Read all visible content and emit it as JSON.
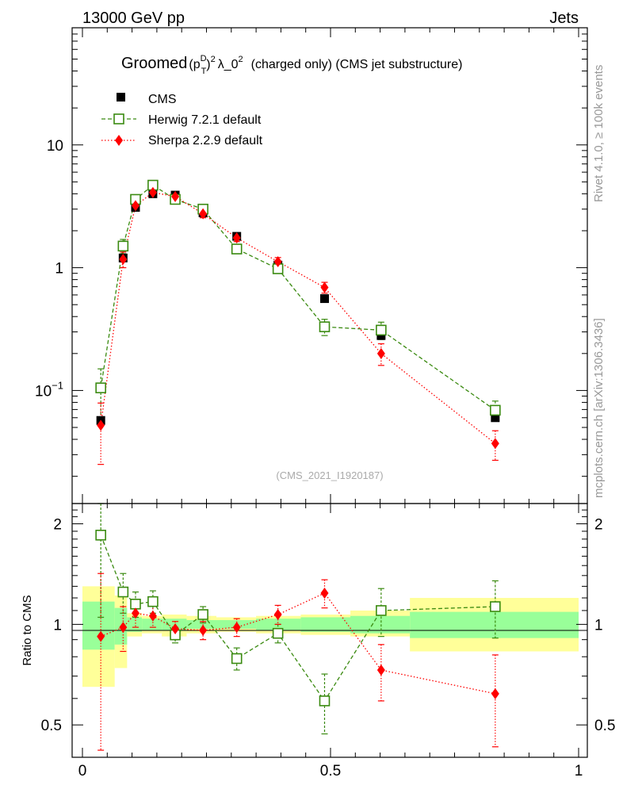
{
  "header": {
    "left_label": "13000 GeV pp",
    "right_label": "Jets"
  },
  "side_labels": {
    "rivet": "Rivet 4.1.0, ≥ 100k events",
    "mcplots": "mcplots.cern.ch [arXiv:1306.3436]"
  },
  "chart_data": {
    "type": "scatter",
    "title": {
      "prefix": "Groomed",
      "base": "(p",
      "sub": "T",
      "sup_d": "D",
      "sup2": "2",
      "rest": "λ_0",
      "rest_sup": "2",
      "suffix": "(charged only) (CMS jet substructure)"
    },
    "analysis_id": "(CMS_2021_I1920187)",
    "xlim": [
      0,
      1
    ],
    "ylim_main": [
      0.012,
      90
    ],
    "y_scale_main": "log",
    "ylim_ratio": [
      0.4,
      2.3
    ],
    "y_scale_ratio": "log",
    "ylabel_ratio": "Ratio to CMS",
    "x_ticks": [
      {
        "v": 0,
        "label": "0"
      },
      {
        "v": 0.5,
        "label": "0.5"
      },
      {
        "v": 1,
        "label": "1"
      }
    ],
    "y_ticks_main": [
      {
        "v": 0.1,
        "base": "10",
        "exp": "−1"
      },
      {
        "v": 1,
        "base": "1",
        "exp": ""
      },
      {
        "v": 10,
        "base": "10",
        "exp": ""
      }
    ],
    "y_ticks_ratio": [
      {
        "v": 0.5,
        "label": "0.5"
      },
      {
        "v": 1,
        "label": "1"
      },
      {
        "v": 2,
        "label": "2"
      }
    ],
    "legend": [
      {
        "name": "CMS",
        "marker": "square-filled",
        "color": "#000000"
      },
      {
        "name": "Herwig 7.2.1 default",
        "marker": "square-open",
        "color": "#3a8a10"
      },
      {
        "name": "Sherpa 2.2.9 default",
        "marker": "diamond",
        "color": "#ff0000"
      }
    ],
    "bins": [
      0,
      0.065,
      0.09,
      0.12,
      0.16,
      0.21,
      0.27,
      0.35,
      0.44,
      0.54,
      0.66,
      1.0
    ],
    "band_inner": [
      [
        0.84,
        1.17
      ],
      [
        0.87,
        1.12
      ],
      [
        0.95,
        1.05
      ],
      [
        0.96,
        1.04
      ],
      [
        0.96,
        1.04
      ],
      [
        0.97,
        1.03
      ],
      [
        0.97,
        1.03
      ],
      [
        0.96,
        1.04
      ],
      [
        0.95,
        1.05
      ],
      [
        0.94,
        1.06
      ],
      [
        0.91,
        1.09
      ]
    ],
    "band_outer": [
      [
        0.65,
        1.3
      ],
      [
        0.74,
        1.22
      ],
      [
        0.92,
        1.08
      ],
      [
        0.94,
        1.06
      ],
      [
        0.92,
        1.07
      ],
      [
        0.94,
        1.06
      ],
      [
        0.95,
        1.05
      ],
      [
        0.94,
        1.06
      ],
      [
        0.93,
        1.07
      ],
      [
        0.92,
        1.1
      ],
      [
        0.83,
        1.2
      ]
    ],
    "series": [
      {
        "name": "CMS",
        "x": [
          0.037,
          0.082,
          0.107,
          0.142,
          0.187,
          0.243,
          0.311,
          0.394,
          0.488,
          0.602,
          0.832
        ],
        "y": [
          0.057,
          1.2,
          3.1,
          4.0,
          3.9,
          2.8,
          1.8,
          1.05,
          0.56,
          0.28,
          0.06
        ]
      },
      {
        "name": "Herwig 7.2.1 default",
        "x": [
          0.037,
          0.082,
          0.107,
          0.142,
          0.187,
          0.243,
          0.311,
          0.394,
          0.488,
          0.602,
          0.832
        ],
        "y": [
          0.105,
          1.5,
          3.6,
          4.7,
          3.6,
          3.0,
          1.42,
          0.98,
          0.33,
          0.31,
          0.069
        ],
        "yerr": [
          0.045,
          0.2,
          0.25,
          0.3,
          0.2,
          0.2,
          0.12,
          0.08,
          0.05,
          0.05,
          0.013
        ]
      },
      {
        "name": "Sherpa 2.2.9 default",
        "x": [
          0.037,
          0.082,
          0.107,
          0.142,
          0.187,
          0.243,
          0.311,
          0.394,
          0.488,
          0.602,
          0.832
        ],
        "y": [
          0.052,
          1.17,
          3.2,
          4.1,
          3.8,
          2.75,
          1.75,
          1.12,
          0.69,
          0.2,
          0.037
        ],
        "yerr": [
          0.027,
          0.17,
          0.25,
          0.3,
          0.2,
          0.2,
          0.12,
          0.09,
          0.07,
          0.04,
          0.01
        ]
      }
    ],
    "ratio_series": [
      {
        "name": "Herwig 7.2.1 default",
        "x": [
          0.037,
          0.082,
          0.107,
          0.142,
          0.187,
          0.243,
          0.311,
          0.394,
          0.488,
          0.602,
          0.832
        ],
        "y": [
          1.85,
          1.25,
          1.15,
          1.17,
          0.93,
          1.07,
          0.79,
          0.94,
          0.59,
          1.1,
          1.13
        ],
        "yerr": [
          0.8,
          0.17,
          0.1,
          0.09,
          0.05,
          0.06,
          0.06,
          0.06,
          0.12,
          0.18,
          0.22
        ]
      },
      {
        "name": "Sherpa 2.2.9 default",
        "x": [
          0.037,
          0.082,
          0.107,
          0.142,
          0.187,
          0.243,
          0.311,
          0.394,
          0.488,
          0.602,
          0.832
        ],
        "y": [
          0.92,
          0.98,
          1.08,
          1.06,
          0.97,
          0.96,
          0.98,
          1.07,
          1.24,
          0.73,
          0.62
        ],
        "yerr": [
          0.5,
          0.15,
          0.1,
          0.08,
          0.05,
          0.06,
          0.06,
          0.07,
          0.12,
          0.14,
          0.19
        ]
      }
    ]
  }
}
